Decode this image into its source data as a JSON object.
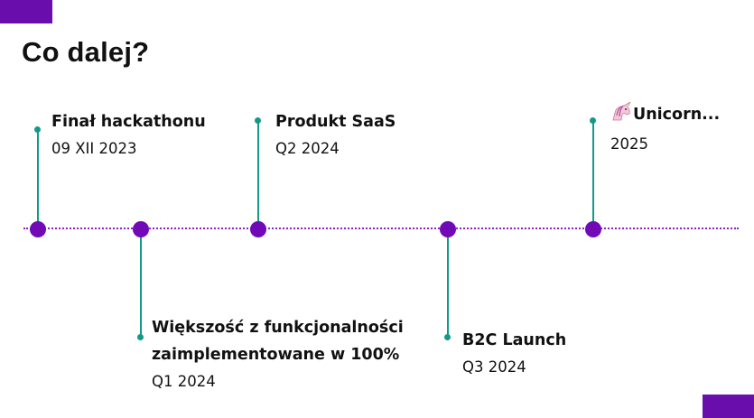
{
  "slide": {
    "title": "Co dalej?"
  },
  "timeline": {
    "items": [
      {
        "name": "Finał hackathonu",
        "date": "09 XII 2023"
      },
      {
        "name": "Większość z funkcjonalności",
        "name_line2": "zaimplementowane w 100%",
        "date": "Q1 2024"
      },
      {
        "name": "Produkt SaaS",
        "date": "Q2 2024"
      },
      {
        "name": "B2C Launch",
        "date": "Q3 2024"
      },
      {
        "name": "Unicorn...",
        "date": "2025",
        "icon": "unicorn-icon"
      }
    ]
  },
  "colors": {
    "accent": "#6a0dad",
    "node": "#7209b7",
    "stem": "#13998a",
    "dotted_line": "#8b22c4"
  }
}
